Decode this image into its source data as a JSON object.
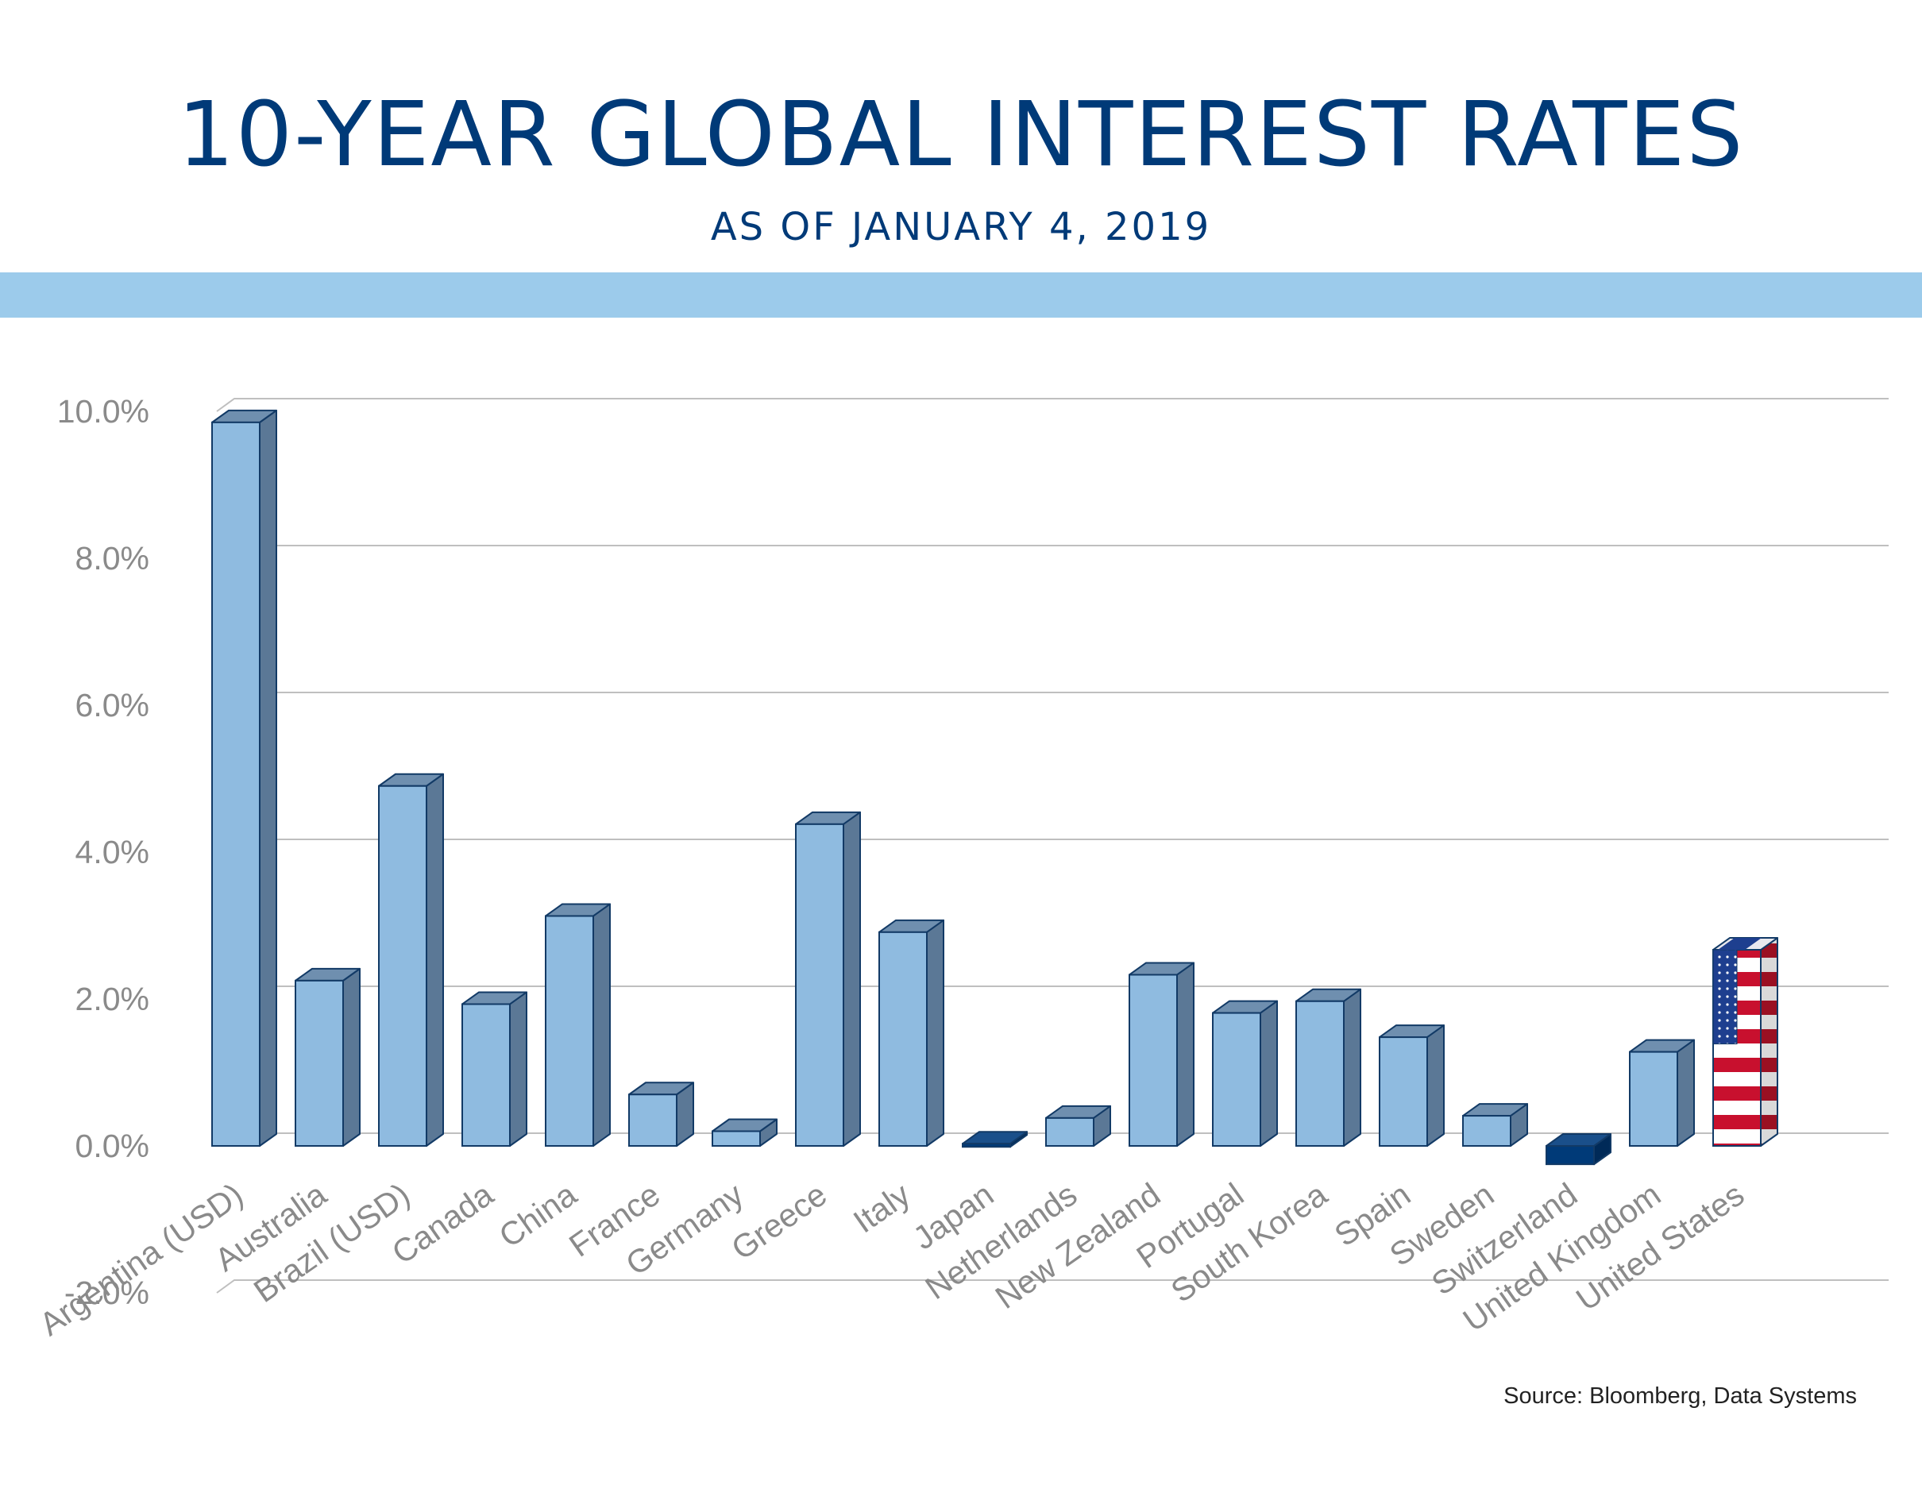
{
  "title": "10-YEAR GLOBAL INTEREST RATES",
  "subtitle": "AS OF JANUARY 4, 2019",
  "source": "Source:  Bloomberg, Data Systems",
  "colors": {
    "title": "#003a78",
    "band": "#9ccbeb",
    "bar_positive": "#8fbbe0",
    "bar_side": "#5b7896",
    "bar_top": "#6f8faf",
    "bar_negative": "#003a78",
    "gridline": "#bfbfbf",
    "flag_red": "#c8102e",
    "flag_blue": "#1e3f8f"
  },
  "chart_data": {
    "type": "bar",
    "style": "3d-column",
    "categories": [
      "Argentina (USD)",
      "Australia",
      "Brazil (USD)",
      "Canada",
      "China",
      "France",
      "Germany",
      "Greece",
      "Italy",
      "Japan",
      "Netherlands",
      "New Zealand",
      "Portugal",
      "South Korea",
      "Spain",
      "Sweden",
      "Switzerland",
      "United Kingdom",
      "United States"
    ],
    "values": [
      9.85,
      2.25,
      4.9,
      1.93,
      3.13,
      0.7,
      0.2,
      4.38,
      2.91,
      0.03,
      0.38,
      2.33,
      1.81,
      1.97,
      1.48,
      0.41,
      -0.25,
      1.28,
      2.67
    ],
    "ylim": [
      -2.0,
      10.0
    ],
    "yticks": [
      "-2.0%",
      "0.0%",
      "2.0%",
      "4.0%",
      "6.0%",
      "8.0%",
      "10.0%"
    ],
    "ytick_values": [
      -2,
      0,
      2,
      4,
      6,
      8,
      10
    ],
    "grid": true,
    "legend": "none",
    "highlight": {
      "United States": "us-flag-fill"
    }
  }
}
